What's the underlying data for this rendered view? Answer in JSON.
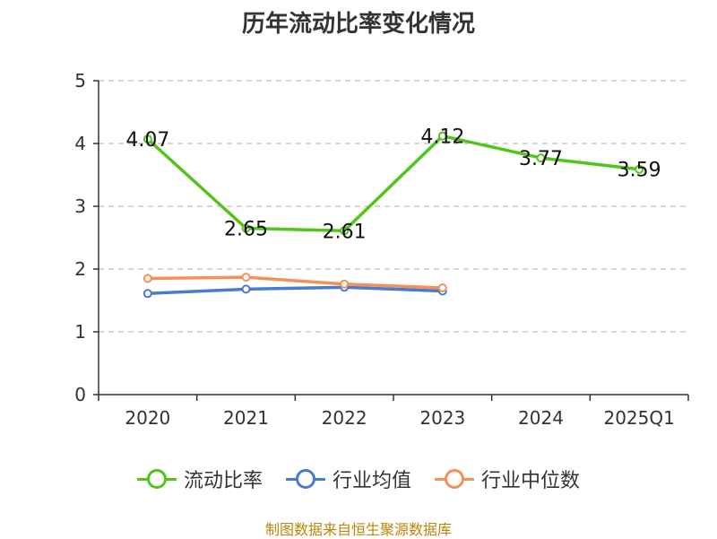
{
  "title": "历年流动比率变化情况",
  "source": "制图数据来自恒生聚源数据库",
  "chart_data": {
    "type": "line",
    "categories": [
      "2020",
      "2021",
      "2022",
      "2023",
      "2024",
      "2025Q1"
    ],
    "ylim": [
      0,
      5
    ],
    "yticks": [
      0,
      1,
      2,
      3,
      4,
      5
    ],
    "grid": true,
    "legend_position": "bottom",
    "series": [
      {
        "name": "流动比率",
        "color": "#52c41a",
        "values": [
          4.07,
          2.65,
          2.61,
          4.12,
          3.77,
          3.59
        ],
        "show_labels": true
      },
      {
        "name": "行业均值",
        "color": "#4a7bd0",
        "values": [
          1.61,
          1.68,
          1.71,
          1.65,
          null,
          null
        ],
        "show_labels": false
      },
      {
        "name": "行业中位数",
        "color": "#f4915a",
        "values": [
          1.85,
          1.87,
          1.76,
          1.7,
          null,
          null
        ],
        "show_labels": false
      }
    ]
  }
}
